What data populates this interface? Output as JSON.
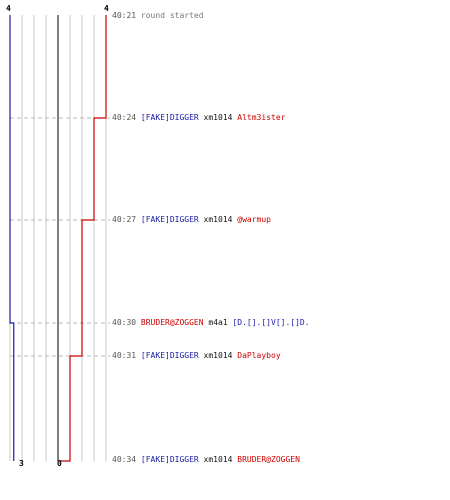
{
  "colors": {
    "team_a": "#1a1aa8",
    "team_b": "#cc0000",
    "grid": "#c8c8c8",
    "center": "#555555",
    "dash": "#b8b8b8",
    "text": "#111111",
    "time": "#555555"
  },
  "scores": {
    "team_a_start": "4",
    "team_b_start": "4",
    "team_a_end": "3",
    "team_b_end": "0"
  },
  "events": [
    {
      "time": "40:21",
      "killer": "",
      "killer_team": "",
      "weapon": "",
      "victim": "",
      "victim_team": "",
      "text": "round started"
    },
    {
      "time": "40:24",
      "killer": "[FAKE]DIGGER",
      "killer_team": "a",
      "weapon": "xm1014",
      "victim": "Altm3ister",
      "victim_team": "b",
      "text": ""
    },
    {
      "time": "40:27",
      "killer": "[FAKE]DIGGER",
      "killer_team": "a",
      "weapon": "xm1014",
      "victim": "@warmup",
      "victim_team": "b",
      "text": ""
    },
    {
      "time": "40:30",
      "killer": "BRUDER@ZOGGEN",
      "killer_team": "b",
      "weapon": "m4a1",
      "victim": "[D.[].[]V[].[]D.",
      "victim_team": "a",
      "text": ""
    },
    {
      "time": "40:31",
      "killer": "[FAKE]DIGGER",
      "killer_team": "a",
      "weapon": "xm1014",
      "victim": "DaPlayboy",
      "victim_team": "b",
      "text": ""
    },
    {
      "time": "40:34",
      "killer": "[FAKE]DIGGER",
      "killer_team": "a",
      "weapon": "xm1014",
      "victim": "BRUDER@ZOGGEN",
      "victim_team": "b",
      "text": ""
    }
  ],
  "alive_timeline": {
    "team_a": [
      4,
      4,
      4,
      3,
      3,
      3
    ],
    "team_b": [
      4,
      3,
      2,
      2,
      1,
      0
    ]
  }
}
